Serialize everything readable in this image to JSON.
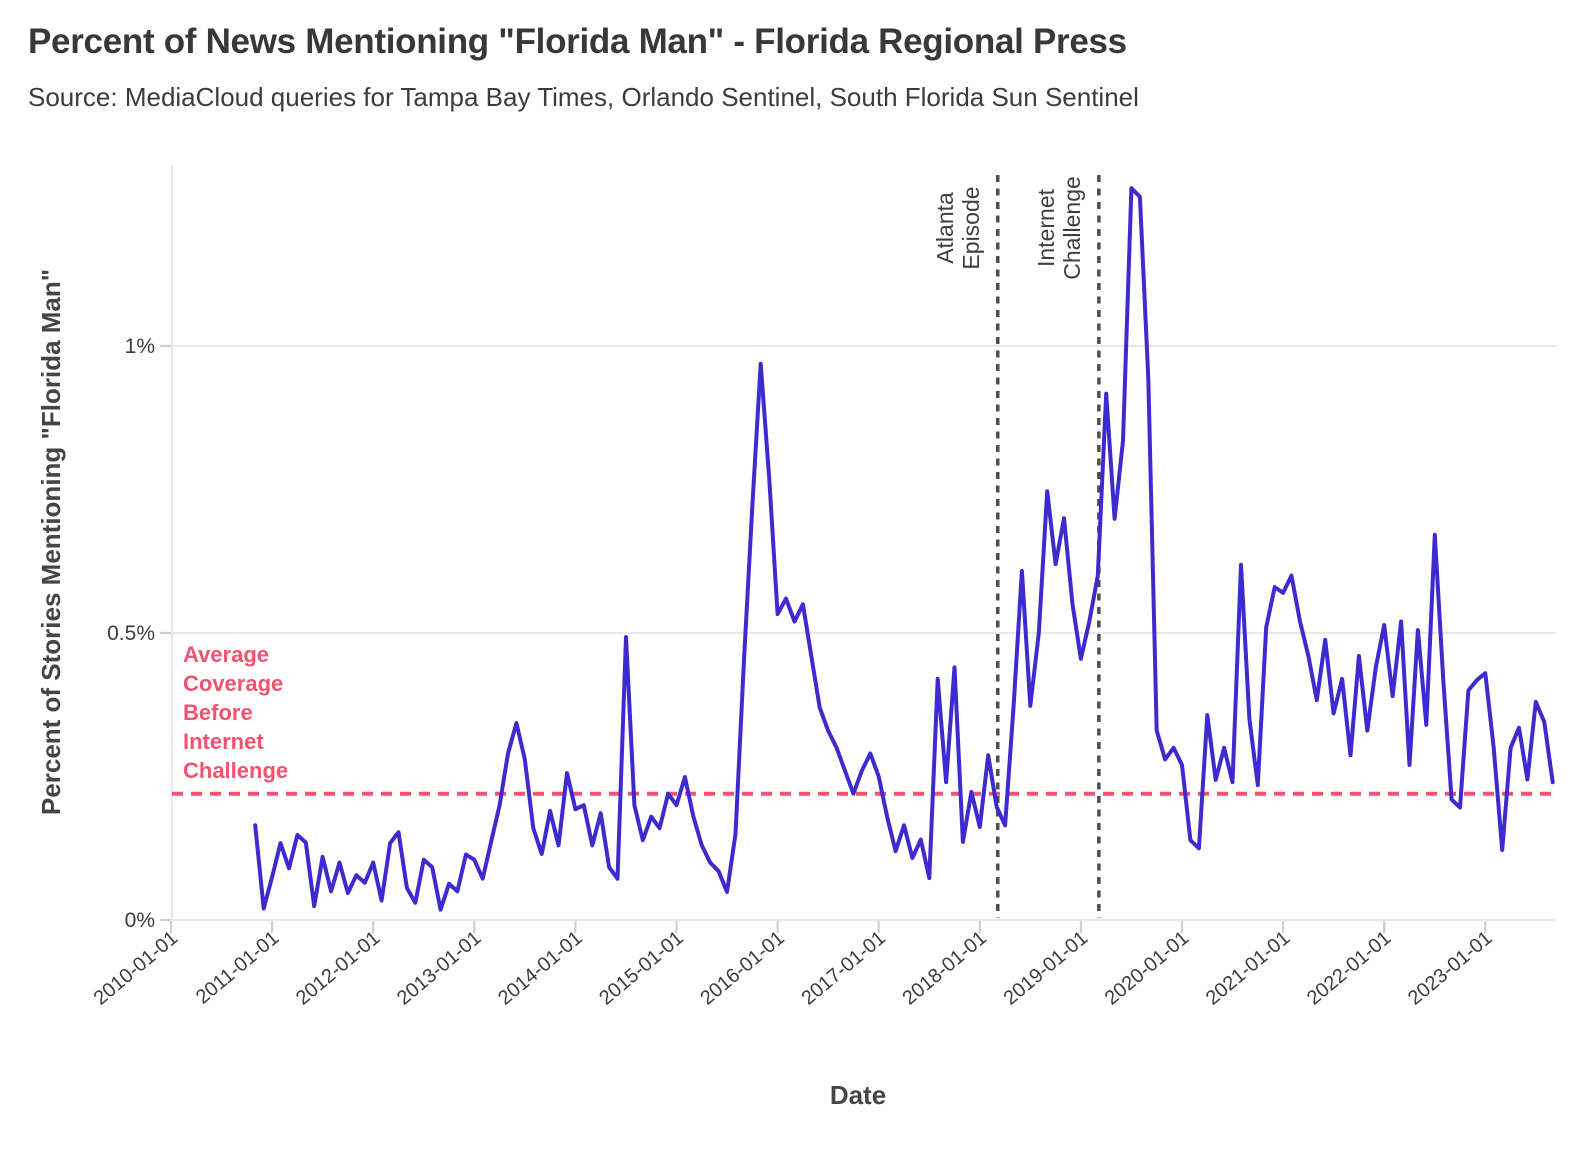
{
  "chart_data": {
    "type": "line",
    "title": "Percent of News Mentioning \"Florida Man\" - Florida Regional Press",
    "subtitle": "Source: MediaCloud queries for Tampa Bay Times, Orlando Sentinel, South Florida Sun Sentinel",
    "xlabel": "Date",
    "ylabel": "Percent of Stories Mentioning \"Florida Man\"",
    "ylim": [
      0,
      1.32
    ],
    "grid": true,
    "legend": "none",
    "y_ticks": [
      {
        "value": 0,
        "label": "0%"
      },
      {
        "value": 0.5,
        "label": "0.5%"
      },
      {
        "value": 1,
        "label": "1%"
      }
    ],
    "x_ticks": [
      "2010-01-01",
      "2011-01-01",
      "2012-01-01",
      "2013-01-01",
      "2014-01-01",
      "2015-01-01",
      "2016-01-01",
      "2017-01-01",
      "2018-01-01",
      "2019-01-01",
      "2020-01-01",
      "2021-01-01",
      "2022-01-01",
      "2023-01-01"
    ],
    "colors": {
      "series": "#3D2BCF",
      "average_line": "#F2536F",
      "event_line": "#4E4E4E",
      "grid": "#E8E8E8",
      "text": "#3D3D3D"
    },
    "average_line": {
      "value": 0.22,
      "label_lines": [
        "Average",
        "Coverage",
        "Before",
        "Internet",
        "Challenge"
      ]
    },
    "events": [
      {
        "date": "2018-03-05",
        "label_lines": [
          "Atlanta",
          "Episode"
        ]
      },
      {
        "date": "2019-03-05",
        "label_lines": [
          "Internet",
          "Challenge"
        ]
      }
    ],
    "series": [
      {
        "name": "Percent of stories mentioning Florida Man",
        "unit": "%",
        "points": [
          [
            "2010-11",
            0.165
          ],
          [
            "2010-12",
            0.02
          ],
          [
            "2011-01",
            0.075
          ],
          [
            "2011-02",
            0.134
          ],
          [
            "2011-03",
            0.09
          ],
          [
            "2011-04",
            0.148
          ],
          [
            "2011-05",
            0.135
          ],
          [
            "2011-06",
            0.024
          ],
          [
            "2011-07",
            0.11
          ],
          [
            "2011-08",
            0.05
          ],
          [
            "2011-09",
            0.1
          ],
          [
            "2011-10",
            0.047
          ],
          [
            "2011-11",
            0.078
          ],
          [
            "2011-12",
            0.065
          ],
          [
            "2012-01",
            0.1
          ],
          [
            "2012-02",
            0.034
          ],
          [
            "2012-03",
            0.134
          ],
          [
            "2012-04",
            0.153
          ],
          [
            "2012-05",
            0.056
          ],
          [
            "2012-06",
            0.03
          ],
          [
            "2012-07",
            0.105
          ],
          [
            "2012-08",
            0.092
          ],
          [
            "2012-09",
            0.018
          ],
          [
            "2012-10",
            0.063
          ],
          [
            "2012-11",
            0.05
          ],
          [
            "2012-12",
            0.114
          ],
          [
            "2013-01",
            0.105
          ],
          [
            "2013-02",
            0.072
          ],
          [
            "2013-03",
            0.137
          ],
          [
            "2013-04",
            0.2
          ],
          [
            "2013-05",
            0.29
          ],
          [
            "2013-06",
            0.343
          ],
          [
            "2013-07",
            0.28
          ],
          [
            "2013-08",
            0.16
          ],
          [
            "2013-09",
            0.115
          ],
          [
            "2013-10",
            0.19
          ],
          [
            "2013-11",
            0.13
          ],
          [
            "2013-12",
            0.256
          ],
          [
            "2014-01",
            0.193
          ],
          [
            "2014-02",
            0.2
          ],
          [
            "2014-03",
            0.13
          ],
          [
            "2014-04",
            0.186
          ],
          [
            "2014-05",
            0.092
          ],
          [
            "2014-06",
            0.072
          ],
          [
            "2014-07",
            0.493
          ],
          [
            "2014-08",
            0.2
          ],
          [
            "2014-09",
            0.139
          ],
          [
            "2014-10",
            0.18
          ],
          [
            "2014-11",
            0.16
          ],
          [
            "2014-12",
            0.22
          ],
          [
            "2015-01",
            0.2
          ],
          [
            "2015-02",
            0.249
          ],
          [
            "2015-03",
            0.18
          ],
          [
            "2015-04",
            0.13
          ],
          [
            "2015-05",
            0.1
          ],
          [
            "2015-06",
            0.085
          ],
          [
            "2015-07",
            0.049
          ],
          [
            "2015-08",
            0.15
          ],
          [
            "2015-09",
            0.45
          ],
          [
            "2015-10",
            0.72
          ],
          [
            "2015-11",
            0.969
          ],
          [
            "2015-12",
            0.77
          ],
          [
            "2016-01",
            0.533
          ],
          [
            "2016-02",
            0.56
          ],
          [
            "2016-03",
            0.52
          ],
          [
            "2016-04",
            0.55
          ],
          [
            "2016-05",
            0.46
          ],
          [
            "2016-06",
            0.37
          ],
          [
            "2016-07",
            0.33
          ],
          [
            "2016-08",
            0.3
          ],
          [
            "2016-09",
            0.26
          ],
          [
            "2016-10",
            0.22
          ],
          [
            "2016-11",
            0.26
          ],
          [
            "2016-12",
            0.29
          ],
          [
            "2017-01",
            0.25
          ],
          [
            "2017-02",
            0.18
          ],
          [
            "2017-03",
            0.12
          ],
          [
            "2017-04",
            0.165
          ],
          [
            "2017-05",
            0.108
          ],
          [
            "2017-06",
            0.14
          ],
          [
            "2017-07",
            0.073
          ],
          [
            "2017-08",
            0.42
          ],
          [
            "2017-09",
            0.24
          ],
          [
            "2017-10",
            0.44
          ],
          [
            "2017-11",
            0.136
          ],
          [
            "2017-12",
            0.223
          ],
          [
            "2018-01",
            0.162
          ],
          [
            "2018-02",
            0.287
          ],
          [
            "2018-03",
            0.197
          ],
          [
            "2018-04",
            0.165
          ],
          [
            "2018-05",
            0.37
          ],
          [
            "2018-06",
            0.608
          ],
          [
            "2018-07",
            0.373
          ],
          [
            "2018-08",
            0.5
          ],
          [
            "2018-09",
            0.747
          ],
          [
            "2018-10",
            0.62
          ],
          [
            "2018-11",
            0.7
          ],
          [
            "2018-12",
            0.55
          ],
          [
            "2019-01",
            0.455
          ],
          [
            "2019-02",
            0.52
          ],
          [
            "2019-03",
            0.6
          ],
          [
            "2019-04",
            0.917
          ],
          [
            "2019-05",
            0.699
          ],
          [
            "2019-06",
            0.835
          ],
          [
            "2019-07",
            1.275
          ],
          [
            "2019-08",
            1.26
          ],
          [
            "2019-09",
            0.944
          ],
          [
            "2019-10",
            0.33
          ],
          [
            "2019-11",
            0.28
          ],
          [
            "2019-12",
            0.3
          ],
          [
            "2020-01",
            0.27
          ],
          [
            "2020-02",
            0.139
          ],
          [
            "2020-03",
            0.125
          ],
          [
            "2020-04",
            0.357
          ],
          [
            "2020-05",
            0.244
          ],
          [
            "2020-06",
            0.3
          ],
          [
            "2020-07",
            0.24
          ],
          [
            "2020-08",
            0.619
          ],
          [
            "2020-09",
            0.35
          ],
          [
            "2020-10",
            0.235
          ],
          [
            "2020-11",
            0.51
          ],
          [
            "2020-12",
            0.58
          ],
          [
            "2021-01",
            0.57
          ],
          [
            "2021-02",
            0.6
          ],
          [
            "2021-03",
            0.52
          ],
          [
            "2021-04",
            0.46
          ],
          [
            "2021-05",
            0.383
          ],
          [
            "2021-06",
            0.488
          ],
          [
            "2021-07",
            0.36
          ],
          [
            "2021-08",
            0.42
          ],
          [
            "2021-09",
            0.287
          ],
          [
            "2021-10",
            0.46
          ],
          [
            "2021-11",
            0.33
          ],
          [
            "2021-12",
            0.44
          ],
          [
            "2022-01",
            0.514
          ],
          [
            "2022-02",
            0.39
          ],
          [
            "2022-03",
            0.52
          ],
          [
            "2022-04",
            0.27
          ],
          [
            "2022-05",
            0.505
          ],
          [
            "2022-06",
            0.34
          ],
          [
            "2022-07",
            0.671
          ],
          [
            "2022-08",
            0.42
          ],
          [
            "2022-09",
            0.21
          ],
          [
            "2022-10",
            0.196
          ],
          [
            "2022-11",
            0.4
          ],
          [
            "2022-12",
            0.418
          ],
          [
            "2023-01",
            0.43
          ],
          [
            "2023-02",
            0.3
          ],
          [
            "2023-03",
            0.122
          ],
          [
            "2023-04",
            0.3
          ],
          [
            "2023-05",
            0.335
          ],
          [
            "2023-06",
            0.245
          ],
          [
            "2023-07",
            0.38
          ],
          [
            "2023-08",
            0.345
          ],
          [
            "2023-09",
            0.24
          ]
        ]
      }
    ]
  }
}
